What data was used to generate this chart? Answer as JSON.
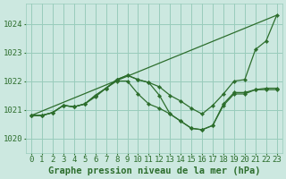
{
  "background_color": "#cce8e0",
  "grid_color": "#99ccbb",
  "line_color": "#2d6e2d",
  "marker_color": "#2d6e2d",
  "xlabel": "Graphe pression niveau de la mer (hPa)",
  "xlabel_fontsize": 7.5,
  "tick_fontsize": 6.5,
  "xlim": [
    -0.5,
    23.5
  ],
  "ylim": [
    1019.5,
    1024.7
  ],
  "yticks": [
    1020,
    1021,
    1022,
    1023,
    1024
  ],
  "xticks": [
    0,
    1,
    2,
    3,
    4,
    5,
    6,
    7,
    8,
    9,
    10,
    11,
    12,
    13,
    14,
    15,
    16,
    17,
    18,
    19,
    20,
    21,
    22,
    23
  ],
  "series": [
    {
      "x": [
        0,
        1,
        2,
        3,
        4,
        5,
        6,
        7,
        8,
        9,
        10,
        11,
        12,
        13,
        14,
        15,
        16,
        17,
        18,
        19,
        20,
        21,
        22,
        23
      ],
      "y": [
        1020.8,
        1020.8,
        1020.9,
        1021.15,
        1021.1,
        1021.2,
        1021.5,
        1021.75,
        1022.05,
        1022.2,
        1022.05,
        1021.95,
        1021.8,
        1021.5,
        1021.3,
        1021.05,
        1020.85,
        1021.15,
        1021.55,
        1022.0,
        1022.05,
        1023.1,
        1023.4,
        1024.3
      ]
    },
    {
      "x": [
        0,
        1,
        2,
        3,
        4,
        5,
        6,
        7,
        8,
        9,
        10,
        11,
        12,
        13,
        14,
        15,
        16,
        17,
        18,
        19,
        20,
        21,
        22,
        23
      ],
      "y": [
        1020.8,
        1020.8,
        1020.9,
        1021.15,
        1021.1,
        1021.2,
        1021.5,
        1021.75,
        1022.05,
        1022.2,
        1022.05,
        1021.95,
        1021.5,
        1020.85,
        1020.6,
        1020.35,
        1020.3,
        1020.45,
        1021.15,
        1021.55,
        1021.55,
        1021.7,
        1021.7,
        1021.7
      ]
    },
    {
      "x": [
        0,
        1,
        2,
        3,
        4,
        5,
        6,
        7,
        8,
        9,
        10,
        11,
        12,
        13,
        14,
        15,
        16,
        17,
        18,
        19,
        20,
        21,
        22,
        23
      ],
      "y": [
        1020.8,
        1020.8,
        1020.9,
        1021.15,
        1021.1,
        1021.2,
        1021.45,
        1021.75,
        1022.0,
        1022.0,
        1021.55,
        1021.2,
        1021.05,
        1020.85,
        1020.6,
        1020.35,
        1020.3,
        1020.45,
        1021.2,
        1021.6,
        1021.6,
        1021.7,
        1021.75,
        1021.75
      ]
    },
    {
      "x": [
        0,
        23
      ],
      "y": [
        1020.8,
        1024.3
      ]
    }
  ]
}
